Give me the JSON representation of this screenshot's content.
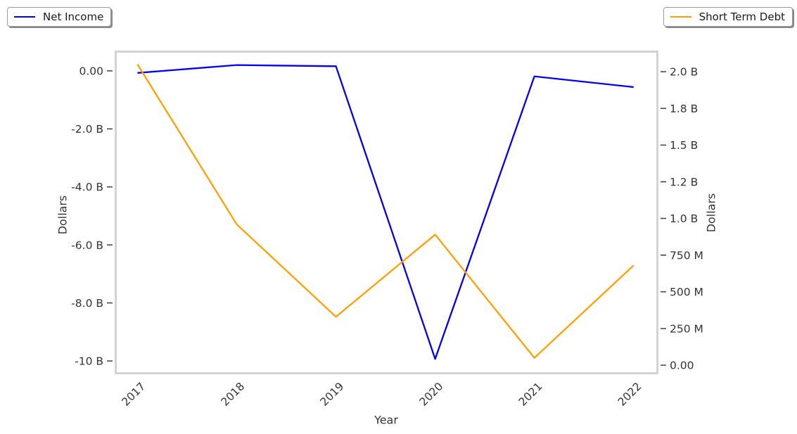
{
  "chart_data": {
    "type": "line",
    "title": "",
    "xlabel": "Year",
    "x": [
      2017,
      2018,
      2019,
      2020,
      2021,
      2022
    ],
    "x_tick_labels": [
      "2017",
      "2018",
      "2019",
      "2020",
      "2021",
      "2022"
    ],
    "x_range": [
      2016.77,
      2022.25
    ],
    "grid": false,
    "series": [
      {
        "name": "Net Income",
        "axis": "left",
        "color": "#0000ee",
        "unit": "billions of dollars",
        "values": [
          -0.07,
          0.2,
          0.16,
          -9.93,
          -0.19,
          -0.56
        ]
      },
      {
        "name": "Short Term Debt",
        "axis": "right",
        "color": "#ffa000",
        "unit": "billions of dollars",
        "values": [
          2.05,
          0.96,
          0.33,
          0.89,
          0.05,
          0.68
        ]
      }
    ],
    "left_axis": {
      "label": "Dollars",
      "tick_values": [
        0,
        -2,
        -4,
        -6,
        -8,
        -10
      ],
      "tick_labels": [
        "0.00",
        "-2.0 B",
        "-4.0 B",
        "-6.0 B",
        "-8.0 B",
        "-10 B"
      ],
      "range": [
        -10.46,
        0.7
      ]
    },
    "right_axis": {
      "label": "Dollars",
      "tick_values": [
        0,
        0.25,
        0.5,
        0.75,
        1.0,
        1.25,
        1.5,
        1.75,
        2.0
      ],
      "tick_labels": [
        "0.00",
        "250 M",
        "500 M",
        "750 M",
        "1.0 B",
        "1.2 B",
        "1.5 B",
        "1.8 B",
        "2.0 B"
      ],
      "range": [
        -0.062,
        2.144
      ]
    },
    "legend_positions": [
      "top-left",
      "top-right"
    ]
  }
}
